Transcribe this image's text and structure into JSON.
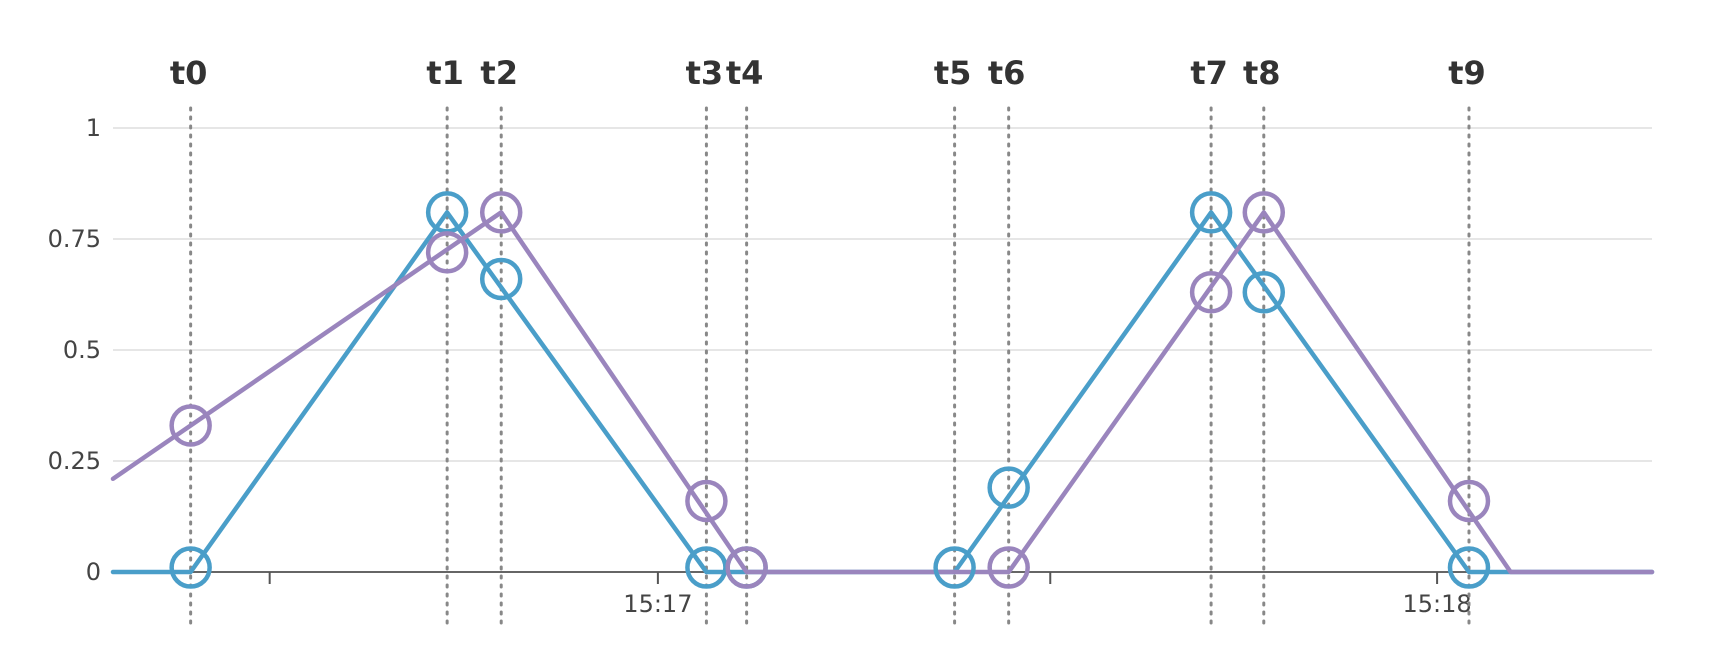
{
  "chart_data": {
    "type": "line",
    "title": "",
    "xlabel": "",
    "ylabel": "",
    "ylim": [
      0,
      1
    ],
    "xlim": [
      0,
      1110
    ],
    "grid": true,
    "y_ticks": [
      {
        "value": 0,
        "label": "0"
      },
      {
        "value": 0.25,
        "label": "0.25"
      },
      {
        "value": 0.5,
        "label": "0.5"
      },
      {
        "value": 0.75,
        "label": "0.75"
      },
      {
        "value": 1,
        "label": "1"
      }
    ],
    "x_tick_marks": [
      113,
      393,
      676,
      955
    ],
    "x_tick_labels": [
      {
        "value": 393,
        "label": "15:17"
      },
      {
        "value": 955,
        "label": "15:18"
      }
    ],
    "time_markers": [
      {
        "label": "t0",
        "x": 56
      },
      {
        "label": "t1",
        "x": 241
      },
      {
        "label": "t2",
        "x": 280
      },
      {
        "label": "t3",
        "x": 428
      },
      {
        "label": "t4",
        "x": 457
      },
      {
        "label": "t5",
        "x": 607
      },
      {
        "label": "t6",
        "x": 646
      },
      {
        "label": "t7",
        "x": 792
      },
      {
        "label": "t8",
        "x": 830
      },
      {
        "label": "t9",
        "x": 978
      }
    ],
    "series": [
      {
        "color": "#4a9ec9",
        "points": [
          {
            "x": 0,
            "y": 0
          },
          {
            "x": 56,
            "y": 0
          },
          {
            "x": 241,
            "y": 0.81
          },
          {
            "x": 428,
            "y": 0
          },
          {
            "x": 457,
            "y": 0
          },
          {
            "x": 607,
            "y": 0
          },
          {
            "x": 792,
            "y": 0.81
          },
          {
            "x": 978,
            "y": 0
          },
          {
            "x": 1110,
            "y": 0
          }
        ],
        "markers": [
          {
            "x": 56,
            "y": 0.01
          },
          {
            "x": 241,
            "y": 0.81
          },
          {
            "x": 280,
            "y": 0.66
          },
          {
            "x": 428,
            "y": 0.01
          },
          {
            "x": 457,
            "y": 0.01
          },
          {
            "x": 607,
            "y": 0.01
          },
          {
            "x": 646,
            "y": 0.19
          },
          {
            "x": 792,
            "y": 0.81
          },
          {
            "x": 830,
            "y": 0.63
          },
          {
            "x": 978,
            "y": 0.01
          }
        ]
      },
      {
        "color": "#9a85bd",
        "points": [
          {
            "x": 0,
            "y": 0.21
          },
          {
            "x": 280,
            "y": 0.81
          },
          {
            "x": 457,
            "y": 0
          },
          {
            "x": 646,
            "y": 0
          },
          {
            "x": 830,
            "y": 0.81
          },
          {
            "x": 1008,
            "y": 0
          },
          {
            "x": 1110,
            "y": 0
          }
        ],
        "markers": [
          {
            "x": 56,
            "y": 0.33
          },
          {
            "x": 241,
            "y": 0.72
          },
          {
            "x": 280,
            "y": 0.81
          },
          {
            "x": 428,
            "y": 0.16
          },
          {
            "x": 457,
            "y": 0.01
          },
          {
            "x": 646,
            "y": 0.01
          },
          {
            "x": 792,
            "y": 0.63
          },
          {
            "x": 830,
            "y": 0.81
          },
          {
            "x": 978,
            "y": 0.16
          }
        ]
      }
    ]
  }
}
